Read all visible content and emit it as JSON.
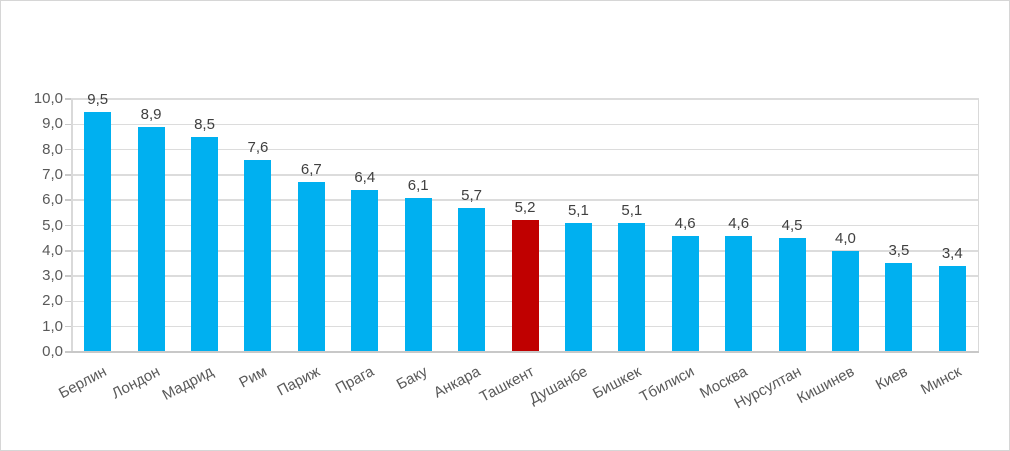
{
  "chart_data": {
    "type": "bar",
    "title": "",
    "xlabel": "",
    "ylabel": "",
    "categories": [
      "Берлин",
      "Лондон",
      "Мадрид",
      "Рим",
      "Париж",
      "Прага",
      "Баку",
      "Анкара",
      "Ташкент",
      "Душанбе",
      "Бишкек",
      "Тбилиси",
      "Москва",
      "Нурсултан",
      "Кишинев",
      "Киев",
      "Минск"
    ],
    "values": [
      9.5,
      8.9,
      8.5,
      7.6,
      6.7,
      6.4,
      6.1,
      5.7,
      5.2,
      5.1,
      5.1,
      4.6,
      4.6,
      4.5,
      4.0,
      3.5,
      3.4
    ],
    "value_labels": [
      "9,5",
      "8,9",
      "8,5",
      "7,6",
      "6,7",
      "6,4",
      "6,1",
      "5,7",
      "5,2",
      "5,1",
      "5,1",
      "4,6",
      "4,6",
      "4,5",
      "4,0",
      "3,5",
      "3,4"
    ],
    "y_tick_labels": [
      "0,0",
      "1,0",
      "2,0",
      "3,0",
      "4,0",
      "5,0",
      "6,0",
      "7,0",
      "8,0",
      "9,0",
      "10,0"
    ],
    "ylim": [
      0,
      10
    ],
    "y_step": 1,
    "grid": true,
    "legend": false,
    "highlight_index": 8,
    "highlight_category": "Ташкент",
    "colors": {
      "bar": "#00B0F0",
      "highlight_bar": "#C00000",
      "gridline": "#dcdcdc",
      "plot_border": "#d9d9d9",
      "axis_line": "#c8c8c8",
      "tick_mark": "#c9c9c9",
      "y_tick_label": "#595959",
      "x_axis_label": "#595959",
      "data_label": "#404040",
      "background": "#ffffff"
    }
  }
}
